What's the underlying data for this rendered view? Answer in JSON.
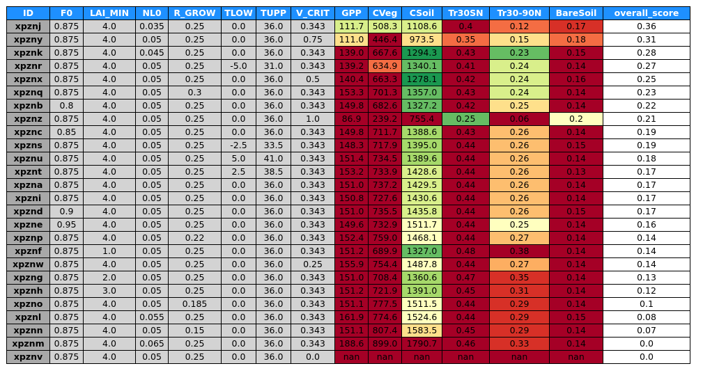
{
  "chart_data": {
    "type": "table",
    "columns": [
      "ID",
      "F0",
      "LAI_MIN",
      "NL0",
      "R_GROW",
      "TLOW",
      "TUPP",
      "V_CRIT",
      "GPP",
      "CVeg",
      "CSoil",
      "Tr30SN",
      "Tr30-90N",
      "BareSoil",
      "overall_score"
    ],
    "rows": [
      [
        "xpznj",
        "0.875",
        "4.0",
        "0.035",
        "0.25",
        "0.0",
        "36.0",
        "0.343",
        "111.7",
        "508.3",
        "1108.6",
        "0.4",
        "0.12",
        "0.17",
        "0.36"
      ],
      [
        "xpzny",
        "0.875",
        "4.0",
        "0.05",
        "0.25",
        "0.0",
        "36.0",
        "0.75",
        "111.0",
        "446.4",
        "973.5",
        "0.35",
        "0.15",
        "0.18",
        "0.31"
      ],
      [
        "xpznk",
        "0.875",
        "4.0",
        "0.045",
        "0.25",
        "0.0",
        "36.0",
        "0.343",
        "139.0",
        "667.6",
        "1294.3",
        "0.43",
        "0.23",
        "0.15",
        "0.28"
      ],
      [
        "xpznr",
        "0.875",
        "4.0",
        "0.05",
        "0.25",
        "-5.0",
        "31.0",
        "0.343",
        "139.2",
        "634.9",
        "1340.1",
        "0.41",
        "0.24",
        "0.14",
        "0.27"
      ],
      [
        "xpznx",
        "0.875",
        "4.0",
        "0.05",
        "0.25",
        "0.0",
        "36.0",
        "0.5",
        "140.4",
        "663.3",
        "1278.1",
        "0.42",
        "0.24",
        "0.16",
        "0.25"
      ],
      [
        "xpznq",
        "0.875",
        "4.0",
        "0.05",
        "0.3",
        "0.0",
        "36.0",
        "0.343",
        "153.3",
        "701.3",
        "1357.0",
        "0.43",
        "0.24",
        "0.14",
        "0.23"
      ],
      [
        "xpznb",
        "0.8",
        "4.0",
        "0.05",
        "0.25",
        "0.0",
        "36.0",
        "0.343",
        "149.8",
        "682.6",
        "1327.2",
        "0.42",
        "0.25",
        "0.14",
        "0.22"
      ],
      [
        "xpznz",
        "0.875",
        "4.0",
        "0.05",
        "0.25",
        "0.0",
        "36.0",
        "1.0",
        "86.9",
        "239.2",
        "755.4",
        "0.25",
        "0.06",
        "0.2",
        "0.21"
      ],
      [
        "xpznc",
        "0.85",
        "4.0",
        "0.05",
        "0.25",
        "0.0",
        "36.0",
        "0.343",
        "149.8",
        "711.7",
        "1388.6",
        "0.43",
        "0.26",
        "0.14",
        "0.19"
      ],
      [
        "xpzns",
        "0.875",
        "4.0",
        "0.05",
        "0.25",
        "-2.5",
        "33.5",
        "0.343",
        "148.3",
        "717.9",
        "1395.0",
        "0.44",
        "0.26",
        "0.15",
        "0.19"
      ],
      [
        "xpznu",
        "0.875",
        "4.0",
        "0.05",
        "0.25",
        "5.0",
        "41.0",
        "0.343",
        "151.4",
        "734.5",
        "1389.6",
        "0.44",
        "0.26",
        "0.14",
        "0.18"
      ],
      [
        "xpznt",
        "0.875",
        "4.0",
        "0.05",
        "0.25",
        "2.5",
        "38.5",
        "0.343",
        "153.2",
        "733.9",
        "1428.6",
        "0.44",
        "0.26",
        "0.13",
        "0.17"
      ],
      [
        "xpzna",
        "0.875",
        "4.0",
        "0.05",
        "0.25",
        "0.0",
        "36.0",
        "0.343",
        "151.0",
        "737.2",
        "1429.5",
        "0.44",
        "0.26",
        "0.14",
        "0.17"
      ],
      [
        "xpzni",
        "0.875",
        "4.0",
        "0.05",
        "0.25",
        "0.0",
        "36.0",
        "0.343",
        "150.8",
        "727.6",
        "1430.6",
        "0.44",
        "0.26",
        "0.14",
        "0.17"
      ],
      [
        "xpznd",
        "0.9",
        "4.0",
        "0.05",
        "0.25",
        "0.0",
        "36.0",
        "0.343",
        "151.0",
        "735.5",
        "1435.8",
        "0.44",
        "0.26",
        "0.15",
        "0.17"
      ],
      [
        "xpzne",
        "0.95",
        "4.0",
        "0.05",
        "0.25",
        "0.0",
        "36.0",
        "0.343",
        "149.6",
        "732.9",
        "1511.7",
        "0.44",
        "0.25",
        "0.14",
        "0.16"
      ],
      [
        "xpznp",
        "0.875",
        "4.0",
        "0.05",
        "0.22",
        "0.0",
        "36.0",
        "0.343",
        "152.4",
        "759.0",
        "1468.1",
        "0.44",
        "0.27",
        "0.14",
        "0.14"
      ],
      [
        "xpznf",
        "0.875",
        "1.0",
        "0.05",
        "0.25",
        "0.0",
        "36.0",
        "0.343",
        "151.2",
        "689.9",
        "1327.0",
        "0.48",
        "0.38",
        "0.14",
        "0.14"
      ],
      [
        "xpznw",
        "0.875",
        "4.0",
        "0.05",
        "0.25",
        "0.0",
        "36.0",
        "0.25",
        "155.9",
        "754.4",
        "1487.8",
        "0.44",
        "0.27",
        "0.14",
        "0.14"
      ],
      [
        "xpzng",
        "0.875",
        "2.0",
        "0.05",
        "0.25",
        "0.0",
        "36.0",
        "0.343",
        "151.0",
        "708.4",
        "1360.6",
        "0.47",
        "0.35",
        "0.14",
        "0.13"
      ],
      [
        "xpznh",
        "0.875",
        "3.0",
        "0.05",
        "0.25",
        "0.0",
        "36.0",
        "0.343",
        "151.2",
        "721.9",
        "1391.0",
        "0.45",
        "0.31",
        "0.14",
        "0.12"
      ],
      [
        "xpzno",
        "0.875",
        "4.0",
        "0.05",
        "0.185",
        "0.0",
        "36.0",
        "0.343",
        "151.1",
        "777.5",
        "1511.5",
        "0.44",
        "0.29",
        "0.14",
        "0.1"
      ],
      [
        "xpznl",
        "0.875",
        "4.0",
        "0.055",
        "0.25",
        "0.0",
        "36.0",
        "0.343",
        "161.9",
        "774.6",
        "1524.6",
        "0.44",
        "0.29",
        "0.15",
        "0.08"
      ],
      [
        "xpznn",
        "0.875",
        "4.0",
        "0.05",
        "0.15",
        "0.0",
        "36.0",
        "0.343",
        "151.1",
        "807.4",
        "1583.5",
        "0.45",
        "0.29",
        "0.14",
        "0.07"
      ],
      [
        "xpznm",
        "0.875",
        "4.0",
        "0.065",
        "0.25",
        "0.0",
        "36.0",
        "0.343",
        "188.6",
        "899.0",
        "1790.7",
        "0.46",
        "0.33",
        "0.14",
        "0.0"
      ],
      [
        "xpznv",
        "0.875",
        "4.0",
        "0.05",
        "0.25",
        "0.0",
        "36.0",
        "0.0",
        "nan",
        "nan",
        "nan",
        "nan",
        "nan",
        "nan",
        "0.0"
      ]
    ],
    "cell_colors": {
      "GPP": [
        "#d9ef8b",
        "#fee08b",
        "#a50026",
        "#a50026",
        "#a50026",
        "#a50026",
        "#a50026",
        "#a50026",
        "#a50026",
        "#a50026",
        "#a50026",
        "#a50026",
        "#a50026",
        "#a50026",
        "#a50026",
        "#a50026",
        "#a50026",
        "#a50026",
        "#a50026",
        "#a50026",
        "#a50026",
        "#a50026",
        "#a50026",
        "#a50026",
        "#a50026",
        "#a50026"
      ],
      "CVeg": [
        "#d9ef8b",
        "#a50026",
        "#a50026",
        "#f46d43",
        "#a50026",
        "#a50026",
        "#a50026",
        "#a50026",
        "#a50026",
        "#a50026",
        "#a50026",
        "#a50026",
        "#a50026",
        "#a50026",
        "#a50026",
        "#a50026",
        "#a50026",
        "#a50026",
        "#a50026",
        "#a50026",
        "#a50026",
        "#a50026",
        "#a50026",
        "#a50026",
        "#a50026",
        "#a50026"
      ],
      "CSoil": [
        "#d9ef8b",
        "#fee08b",
        "#1a9850",
        "#66bd63",
        "#1a9850",
        "#66bd63",
        "#66bd63",
        "#a50026",
        "#a6d96a",
        "#a6d96a",
        "#a6d96a",
        "#d9ef8b",
        "#d9ef8b",
        "#d9ef8b",
        "#d9ef8b",
        "#ffffbf",
        "#ffffbf",
        "#66bd63",
        "#ffffbf",
        "#a6d96a",
        "#a6d96a",
        "#ffffbf",
        "#ffffbf",
        "#fee08b",
        "#a50026",
        "#a50026"
      ],
      "Tr30SN": [
        "#a50026",
        "#f46d43",
        "#a50026",
        "#a50026",
        "#a50026",
        "#a50026",
        "#a50026",
        "#66bd63",
        "#a50026",
        "#a50026",
        "#a50026",
        "#a50026",
        "#a50026",
        "#a50026",
        "#a50026",
        "#a50026",
        "#a50026",
        "#a50026",
        "#a50026",
        "#a50026",
        "#a50026",
        "#a50026",
        "#a50026",
        "#a50026",
        "#a50026",
        "#a50026"
      ],
      "Tr30-90N": [
        "#f46d43",
        "#fee08b",
        "#66bd63",
        "#d9ef8b",
        "#d9ef8b",
        "#d9ef8b",
        "#fee08b",
        "#a50026",
        "#fdbe6f",
        "#fdbe6f",
        "#fdbe6f",
        "#fdbe6f",
        "#fdbe6f",
        "#fdbe6f",
        "#fdbe6f",
        "#ffffbf",
        "#fdbe6f",
        "#a50026",
        "#fdae61",
        "#d73027",
        "#d73027",
        "#d73027",
        "#d73027",
        "#d73027",
        "#d73027",
        "#a50026"
      ],
      "BareSoil": [
        "#d73027",
        "#f46d43",
        "#a50026",
        "#a50026",
        "#a50026",
        "#a50026",
        "#a50026",
        "#ffffbf",
        "#a50026",
        "#a50026",
        "#a50026",
        "#a50026",
        "#a50026",
        "#a50026",
        "#a50026",
        "#a50026",
        "#a50026",
        "#a50026",
        "#a50026",
        "#a50026",
        "#a50026",
        "#a50026",
        "#a50026",
        "#a50026",
        "#a50026",
        "#a50026"
      ]
    },
    "style": {
      "header_bg": "#1e90ff",
      "header_fg": "#ffffff",
      "id_bg": "#a9a9a9",
      "param_bg": "#d3d3d3",
      "score_bg": "#ffffff",
      "border": "#000000"
    }
  }
}
